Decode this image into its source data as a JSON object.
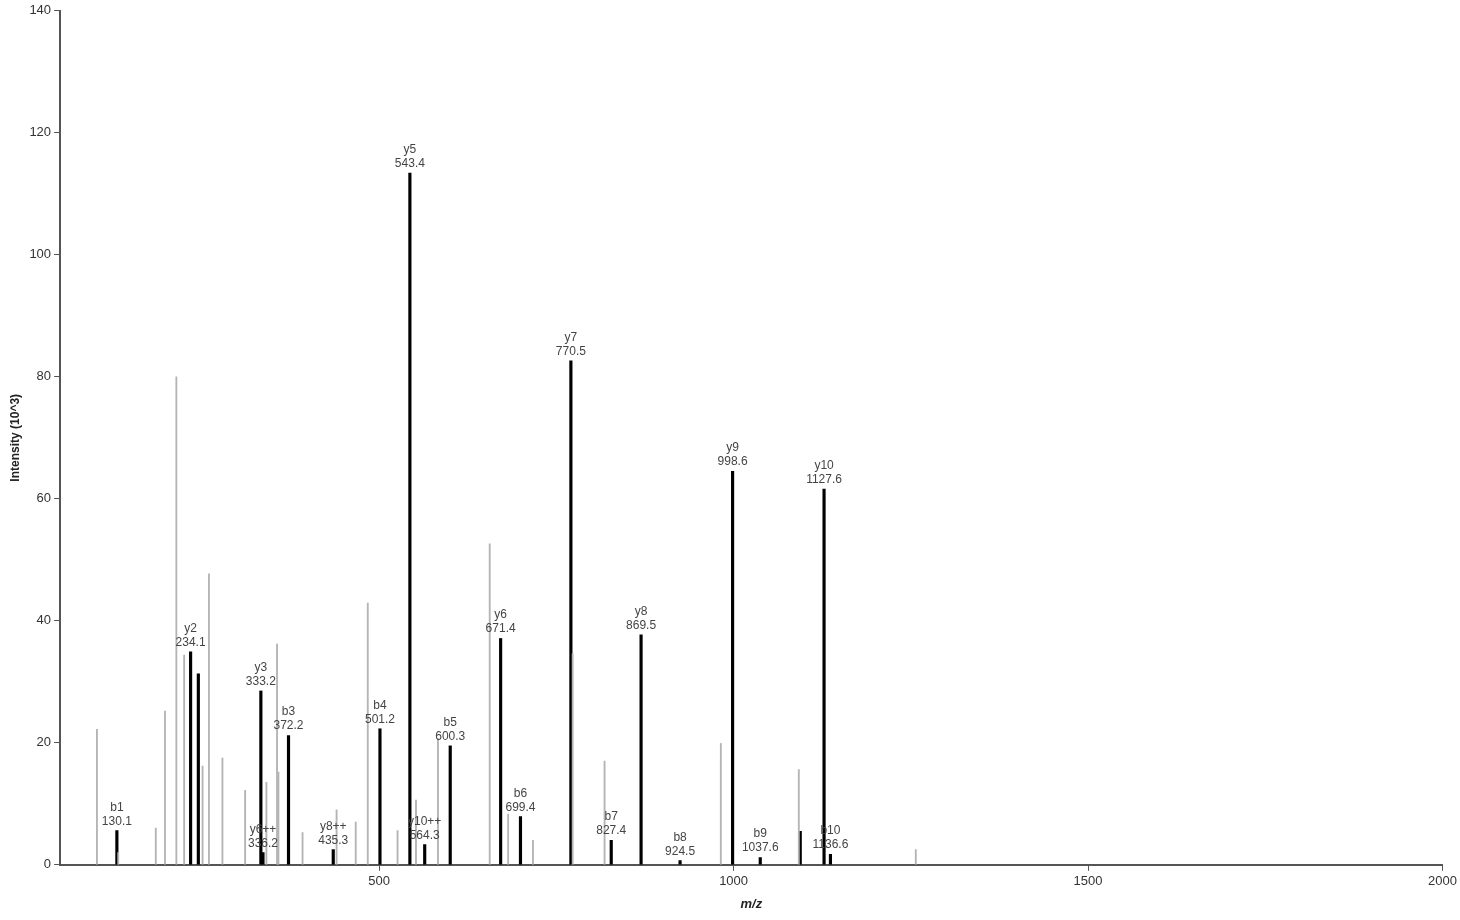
{
  "chart_data": {
    "type": "bar",
    "xlabel": "m/z",
    "ylabel": "Intensity (10^3)",
    "xlim": [
      50,
      2000
    ],
    "xticks": [
      500,
      1000,
      1500,
      2000
    ],
    "ylim": [
      0,
      140
    ],
    "yticks": [
      0,
      20,
      40,
      60,
      80,
      100,
      120,
      140
    ],
    "legend": false,
    "series": [
      {
        "color": "#b4b4b4",
        "x": [
          102,
          132,
          185,
          198,
          214,
          225,
          251,
          260,
          279,
          311,
          341,
          356,
          358,
          392,
          440,
          467,
          484,
          526,
          552,
          583,
          656,
          682,
          717,
          773,
          818,
          982,
          1092,
          1257
        ],
        "values": [
          22.2,
          2,
          6,
          25.2,
          80,
          34.4,
          16.2,
          47.7,
          17.5,
          12.2,
          13.5,
          36.2,
          15.2,
          5.3,
          9,
          7,
          42.9,
          5.6,
          10.6,
          20.7,
          52.6,
          8.3,
          4,
          34.6,
          17,
          19.9,
          15.6,
          2.5
        ]
      },
      {
        "color": "#000000",
        "x": [
          130.1,
          234.1,
          245,
          333.2,
          336.2,
          372.2,
          435.3,
          501.2,
          543.4,
          564.3,
          600.3,
          671.4,
          699.4,
          770.5,
          827.4,
          869.5,
          924.5,
          998.6,
          1037.6,
          1094,
          1127.6,
          1136.6
        ],
        "values": [
          5.6,
          34.9,
          31.3,
          28.5,
          2,
          21.2,
          2.5,
          22.3,
          113.4,
          3.3,
          19.5,
          37.1,
          7.9,
          82.6,
          4,
          37.7,
          0.7,
          64.5,
          1.2,
          5.5,
          61.6,
          1.7
        ]
      }
    ],
    "annotations": [
      {
        "text": "b1\n130.1",
        "x": 130.1,
        "y": 5.6
      },
      {
        "text": "y2\n234.1",
        "x": 234.1,
        "y": 34.9
      },
      {
        "text": "y3\n333.2",
        "x": 333.2,
        "y": 28.5
      },
      {
        "text": "y6++\n336.2",
        "x": 336.2,
        "y": 2
      },
      {
        "text": "b3\n372.2",
        "x": 372.2,
        "y": 21.2
      },
      {
        "text": "y8++\n435.3",
        "x": 435.3,
        "y": 2.5
      },
      {
        "text": "b4\n501.2",
        "x": 501.2,
        "y": 22.3
      },
      {
        "text": "y5\n543.4",
        "x": 543.4,
        "y": 113.4
      },
      {
        "text": "y10++\n564.3",
        "x": 564.3,
        "y": 3.3
      },
      {
        "text": "b5\n600.3",
        "x": 600.3,
        "y": 19.5
      },
      {
        "text": "y6\n671.4",
        "x": 671.4,
        "y": 37.1
      },
      {
        "text": "b6\n699.4",
        "x": 699.4,
        "y": 7.9
      },
      {
        "text": "y7\n770.5",
        "x": 770.5,
        "y": 82.6
      },
      {
        "text": "b7\n827.4",
        "x": 827.4,
        "y": 4
      },
      {
        "text": "y8\n869.5",
        "x": 869.5,
        "y": 37.7
      },
      {
        "text": "b8\n924.5",
        "x": 924.5,
        "y": 0.7
      },
      {
        "text": "y9\n998.6",
        "x": 998.6,
        "y": 64.5
      },
      {
        "text": "b9\n1037.6",
        "x": 1037.6,
        "y": 1.2
      },
      {
        "text": "y10\n1127.6",
        "x": 1127.6,
        "y": 61.6
      },
      {
        "text": "b10\n1136.6",
        "x": 1136.6,
        "y": 1.7
      }
    ]
  }
}
